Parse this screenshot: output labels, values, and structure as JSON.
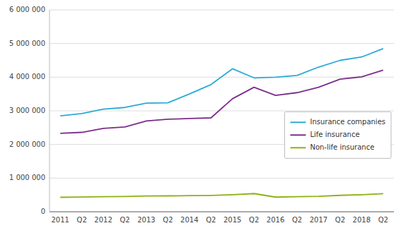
{
  "chart_data": {
    "type": "line",
    "categories": [
      "2011",
      "Q2",
      "2012",
      "Q2",
      "2013",
      "Q2",
      "2014",
      "Q2",
      "2015",
      "Q2",
      "2016",
      "Q2",
      "2017",
      "Q2",
      "2018",
      "Q2"
    ],
    "series": [
      {
        "name": "Insurance companies",
        "color": "#29ABD4",
        "values": [
          2850000,
          2920000,
          3050000,
          3100000,
          3230000,
          3240000,
          3500000,
          3780000,
          4250000,
          3980000,
          4000000,
          4050000,
          4300000,
          4500000,
          4600000,
          4850000
        ]
      },
      {
        "name": "Life insurance",
        "color": "#7B2D8B",
        "values": [
          2330000,
          2360000,
          2480000,
          2520000,
          2700000,
          2750000,
          2770000,
          2790000,
          3360000,
          3700000,
          3460000,
          3540000,
          3700000,
          3940000,
          4010000,
          4210000
        ]
      },
      {
        "name": "Non-life insurance",
        "color": "#8DB013",
        "values": [
          430000,
          440000,
          450000,
          455000,
          468000,
          472000,
          478000,
          486000,
          508000,
          540000,
          435000,
          448000,
          458000,
          488000,
          505000,
          538000
        ]
      }
    ],
    "ylim": [
      0,
      6000000
    ],
    "yticks": [
      0,
      {
        "value": 1000000,
        "label": "1 000 000"
      },
      {
        "value": 2000000,
        "label": "2 000 000"
      },
      {
        "value": 3000000,
        "label": "3 000 000"
      },
      {
        "value": 4000000,
        "label": "4 000 000"
      },
      {
        "value": 5000000,
        "label": "5 000 000"
      },
      {
        "value": 6000000,
        "label": "6 000 000"
      }
    ],
    "grid": true,
    "legend": "right"
  }
}
